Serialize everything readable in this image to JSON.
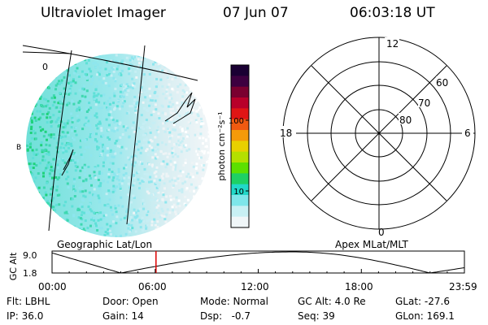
{
  "header": {
    "title": "Ultraviolet Imager",
    "date": "07 Jun 07",
    "time": "06:03:18 UT"
  },
  "colorbar": {
    "label": "photon cm⁻²s⁻¹",
    "ticks": [
      "100",
      "10"
    ],
    "colors": [
      "#1a0033",
      "#3d0040",
      "#7a0030",
      "#b8002a",
      "#e01515",
      "#f05a10",
      "#f59a0a",
      "#e8d000",
      "#b4e000",
      "#5ce000",
      "#1ed064",
      "#22d8c8",
      "#7ee6ea",
      "#c8f0f4",
      "#f0f6f8"
    ]
  },
  "polar_plot": {
    "top_label": "12",
    "left_label": "18",
    "right_label": "6",
    "bottom_label": "0",
    "ring_labels": [
      "60",
      "70",
      "80"
    ]
  },
  "projection_labels": {
    "left": "Geographic Lat/Lon",
    "right": "Apex MLat/MLT"
  },
  "altitude_chart": {
    "y_label": "GC Alt",
    "y_ticks": [
      "9.0",
      "1.8"
    ],
    "x_ticks": [
      "00:00",
      "06:00",
      "12:00",
      "18:00",
      "23:59"
    ],
    "current_time_marker": "06:03",
    "marker_color": "#dd0000"
  },
  "info": {
    "filter_label": "Flt: LBHL",
    "ip_label": "IP: 36.0",
    "door_label": "Door: Open",
    "gain_label": "Gain: 14",
    "mode_label": "Mode: Normal",
    "dsp_label": "Dsp:   -0.7",
    "gcalt_label": "GC Alt: 4.0 Re",
    "seq_label": "Seq: 39",
    "glat_label": "GLat: -27.6",
    "glon_label": "GLon: 169.1"
  },
  "earth_image": {
    "glyph_left": "0",
    "glyph_side": "B"
  }
}
